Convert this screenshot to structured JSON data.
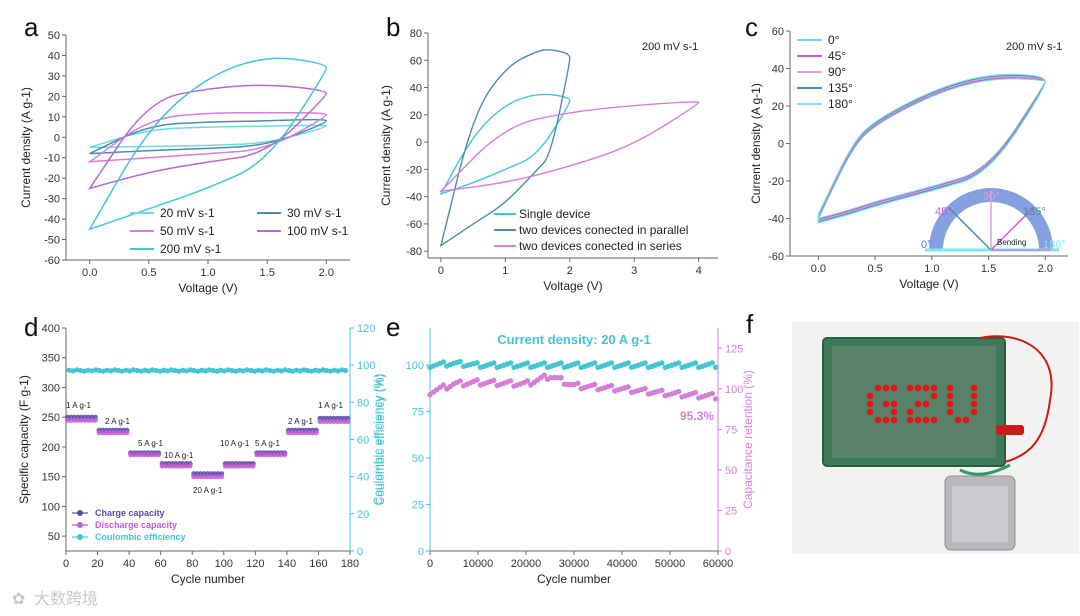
{
  "panels": {
    "a": "a",
    "b": "b",
    "c": "c",
    "d": "d",
    "e": "e",
    "f": "f"
  },
  "chart_data": [
    {
      "panel": "a",
      "type": "line",
      "xlabel": "Voltage (V)",
      "ylabel": "Current density (A g-1)",
      "xlim": [
        -0.2,
        2.2
      ],
      "ylim": [
        -60,
        50
      ],
      "xticks": [
        0.0,
        0.5,
        1.0,
        1.5,
        2.0
      ],
      "yticks": [
        -60,
        -50,
        -40,
        -30,
        -20,
        -10,
        0,
        10,
        20,
        30,
        40,
        50
      ],
      "grid": false,
      "legend_position": "bottom-right",
      "series": [
        {
          "name": "20 mV s-1",
          "color": "#6fd8e0",
          "x": [
            0,
            0.5,
            1.0,
            1.5,
            2.0
          ],
          "upper": [
            -5,
            4,
            5,
            5.5,
            6
          ],
          "lower": [
            -5,
            -4.5,
            -4,
            -3,
            5
          ]
        },
        {
          "name": "30 mV s-1",
          "color": "#4a8ea8",
          "x": [
            0,
            0.5,
            1.0,
            1.5,
            2.0
          ],
          "upper": [
            -8,
            6,
            7.5,
            8,
            9
          ],
          "lower": [
            -8,
            -6.5,
            -5.5,
            -4,
            7
          ]
        },
        {
          "name": "50 mV s-1",
          "color": "#d57ed8",
          "x": [
            0,
            0.5,
            1.0,
            1.5,
            2.0
          ],
          "upper": [
            -12,
            9,
            12,
            12,
            12
          ],
          "lower": [
            -12,
            -10,
            -8,
            -6,
            10
          ]
        },
        {
          "name": "100 mV s-1",
          "color": "#b56ad0",
          "x": [
            0,
            0.5,
            1.0,
            1.5,
            2.0
          ],
          "upper": [
            -25,
            18,
            24,
            26,
            23
          ],
          "lower": [
            -25,
            -17,
            -12,
            -8,
            20
          ]
        },
        {
          "name": "200 mV s-1",
          "color": "#44c4d4",
          "x": [
            0,
            0.5,
            1.0,
            1.5,
            2.0
          ],
          "upper": [
            -45,
            5,
            30,
            40,
            36
          ],
          "lower": [
            -45,
            -35,
            -25,
            -12,
            32
          ]
        }
      ]
    },
    {
      "panel": "b",
      "type": "line",
      "annotation": "200 mV s-1",
      "xlabel": "Voltage (V)",
      "ylabel": "Current density (A g-1)",
      "xlim": [
        -0.2,
        4.3
      ],
      "ylim": [
        -85,
        80
      ],
      "xticks": [
        0,
        1,
        2,
        3,
        4
      ],
      "yticks": [
        -80,
        -60,
        -40,
        -20,
        0,
        20,
        40,
        60,
        80
      ],
      "grid": false,
      "legend_position": "bottom-center",
      "series": [
        {
          "name": "Single device",
          "color": "#44c4d4",
          "x": [
            0,
            0.5,
            1.0,
            1.5,
            2.0
          ],
          "upper": [
            -38,
            5,
            28,
            36,
            33
          ],
          "lower": [
            -38,
            -30,
            -20,
            -10,
            28
          ]
        },
        {
          "name": "two devices conected in parallel",
          "color": "#4a8ea8",
          "x": [
            0,
            0.5,
            1.0,
            1.5,
            1.7,
            2.0
          ],
          "upper": [
            -76,
            20,
            55,
            67,
            68,
            65
          ],
          "lower": [
            -76,
            -60,
            -45,
            -20,
            -10,
            58
          ]
        },
        {
          "name": "two devices conected in series",
          "color": "#d57ed8",
          "x": [
            0,
            1.0,
            2.0,
            3.0,
            4.0
          ],
          "upper": [
            -36,
            12,
            22,
            27,
            30
          ],
          "lower": [
            -36,
            -30,
            -18,
            -2,
            28
          ]
        }
      ]
    },
    {
      "panel": "c",
      "type": "line",
      "annotation": "200 mV s-1",
      "xlabel": "Voltage (V)",
      "ylabel": "Current density (A g-1)",
      "xlim": [
        -0.25,
        2.2
      ],
      "ylim": [
        -60,
        60
      ],
      "xticks": [
        0.0,
        0.5,
        1.0,
        1.5,
        2.0
      ],
      "yticks": [
        -60,
        -40,
        -20,
        0,
        20,
        40,
        60
      ],
      "grid": false,
      "legend_position": "top-left",
      "series": [
        {
          "name": "0°",
          "color": "#6fd8e0"
        },
        {
          "name": "45°",
          "color": "#c35bd6"
        },
        {
          "name": "90°",
          "color": "#d9a0de"
        },
        {
          "name": "135°",
          "color": "#4a8ea8"
        },
        {
          "name": "180°",
          "color": "#7fe6ef"
        }
      ],
      "curve": {
        "x": [
          0,
          0.3,
          0.5,
          1.0,
          1.5,
          2.0
        ],
        "upper": [
          -40,
          -2,
          10,
          26,
          35,
          34
        ],
        "lower": [
          -40,
          -35,
          -31,
          -23,
          -14,
          32
        ]
      },
      "inset_labels": {
        "a0": "0°",
        "a45": "45°",
        "a90": "90°",
        "a135": "135°",
        "a180": "180°",
        "bending": "Bending"
      }
    },
    {
      "panel": "d",
      "type": "scatter",
      "xlabel": "Cycle number",
      "ylabel": "Specific capacity (F g-1)",
      "y2label": "Coulombic efficiency (%)",
      "xlim": [
        0,
        180
      ],
      "ylim": [
        25,
        400
      ],
      "y2lim": [
        0,
        120
      ],
      "xticks": [
        0,
        20,
        40,
        60,
        80,
        100,
        120,
        140,
        160,
        180
      ],
      "yticks": [
        50,
        100,
        150,
        200,
        250,
        300,
        350,
        400
      ],
      "y2ticks": [
        0,
        20,
        40,
        60,
        80,
        100,
        120
      ],
      "legend_position": "bottom-left",
      "rate_labels": [
        "1 A g-1",
        "2 A g-1",
        "5 A g-1",
        "10 A g-1",
        "20 A g-1",
        "10 A g-1",
        "5 A g-1",
        "2 A g-1",
        "1 A g-1"
      ],
      "segments": [
        {
          "x0": 0,
          "x1": 20,
          "charge": 250,
          "discharge": 245
        },
        {
          "x0": 20,
          "x1": 40,
          "charge": 228,
          "discharge": 224
        },
        {
          "x0": 40,
          "x1": 60,
          "charge": 190,
          "discharge": 187
        },
        {
          "x0": 60,
          "x1": 80,
          "charge": 172,
          "discharge": 168
        },
        {
          "x0": 80,
          "x1": 100,
          "charge": 155,
          "discharge": 150
        },
        {
          "x0": 100,
          "x1": 120,
          "charge": 172,
          "discharge": 168
        },
        {
          "x0": 120,
          "x1": 140,
          "charge": 190,
          "discharge": 187
        },
        {
          "x0": 140,
          "x1": 160,
          "charge": 228,
          "discharge": 224
        },
        {
          "x0": 160,
          "x1": 180,
          "charge": 248,
          "discharge": 243
        }
      ],
      "coulombic_efficiency": 97,
      "series": [
        {
          "name": "Charge capacity",
          "color": "#5a4aa8"
        },
        {
          "name": "Discharge capacity",
          "color": "#c35bd6"
        },
        {
          "name": "Coulombic efficiency",
          "color": "#44c4d4"
        }
      ]
    },
    {
      "panel": "e",
      "type": "scatter",
      "title": "Current density: 20 A g-1",
      "xlabel": "Cycle number",
      "ylabel": "Coulombic efficiency (%)",
      "y2label": "Capacitance retention (%)",
      "xlim": [
        0,
        60000
      ],
      "ylim": [
        0,
        120
      ],
      "y2lim": [
        0,
        137.5
      ],
      "xticks": [
        0,
        10000,
        20000,
        30000,
        40000,
        50000,
        60000
      ],
      "yticks": [
        0,
        25,
        50,
        75,
        100
      ],
      "y2ticks": [
        0,
        25,
        50,
        75,
        100,
        125
      ],
      "annotation": "95.3%",
      "series": [
        {
          "name": "Coulombic efficiency",
          "color": "#44c4d4",
          "x": [
            0,
            5000,
            10000,
            20000,
            30000,
            40000,
            50000,
            60000
          ],
          "y": [
            100,
            101,
            100,
            100,
            100,
            100,
            100,
            100
          ]
        },
        {
          "name": "Capacitance retention",
          "color": "#d57ed8",
          "x": [
            0,
            5000,
            10000,
            20000,
            25000,
            30000,
            40000,
            50000,
            60000
          ],
          "y": [
            98,
            103,
            104,
            103,
            108,
            102,
            100,
            97,
            95.3
          ]
        }
      ]
    }
  ],
  "photo": {
    "display_text": "GZU",
    "led_color": "#e01818",
    "board_color": "#3e7a58"
  },
  "watermark": "大数跨境"
}
